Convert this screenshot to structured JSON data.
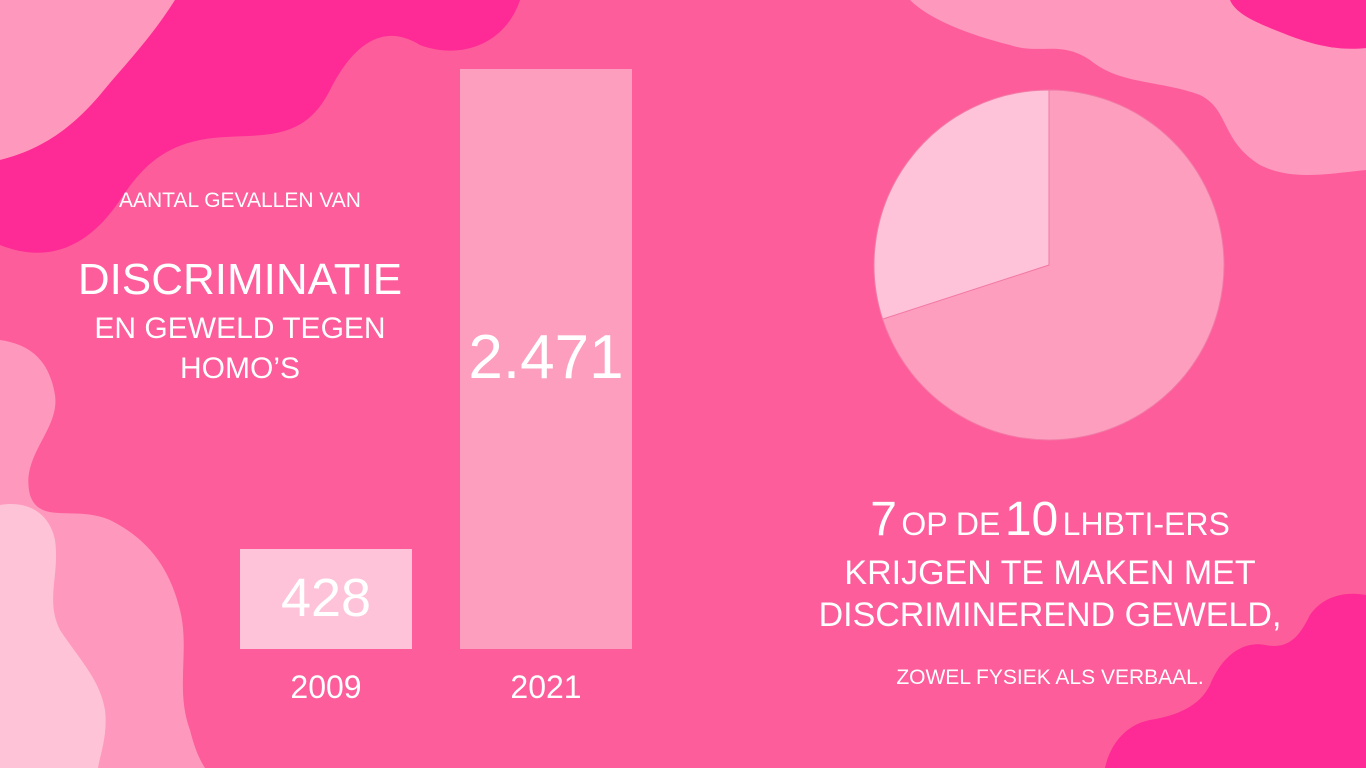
{
  "colors": {
    "background": "#fd5d9b",
    "wave_dark": "#fe2a95",
    "wave_light": "#ff98bd",
    "wave_lightest": "#fec3d7",
    "bar_2009": "#fec3d8",
    "bar_2021": "#fe9ebe",
    "pie_major": "#fe9ebe",
    "pie_minor": "#fec3d8",
    "text": "#ffffff"
  },
  "heading": {
    "subtitle": "AANTAL GEVALLEN VAN",
    "line1": "DISCRIMINATIE",
    "line2": "EN GEWELD TEGEN",
    "line3": "HOMO’S"
  },
  "statement": {
    "num1": "7",
    "word1": "OP DE",
    "num2": "10",
    "word2": "LHBTI-ERS",
    "line2": "KRIJGEN TE MAKEN MET",
    "line3": "DISCRIMINEREND GEWELD,",
    "note": "ZOWEL FYSIEK ALS VERBAAL."
  },
  "chart_data": [
    {
      "type": "bar",
      "categories": [
        "2009",
        "2021"
      ],
      "values": [
        428,
        2471
      ],
      "value_labels": [
        "428",
        "2.471"
      ],
      "title": "",
      "xlabel": "",
      "ylabel": "",
      "ylim": [
        0,
        2471
      ]
    },
    {
      "type": "pie",
      "values": [
        7,
        3
      ],
      "labels": [
        "",
        ""
      ],
      "title": ""
    }
  ]
}
